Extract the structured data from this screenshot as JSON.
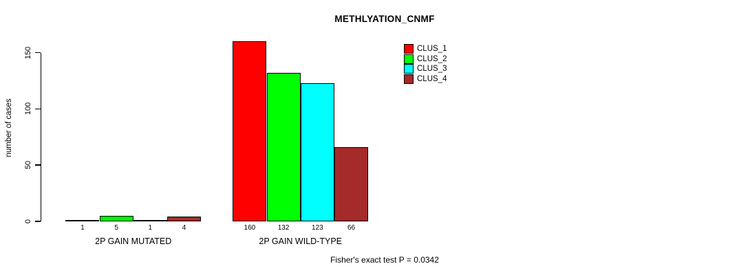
{
  "title": "METHLYATION_CNMF",
  "annotation": "Fisher's exact test P = 0.0342",
  "colors": {
    "background": "#FFFFFF",
    "axis": "#000000",
    "clus_1": "#FF0000",
    "clus_2": "#00FF00",
    "clus_3": "#00FFFF",
    "clus_4": "#A52A2A"
  },
  "chart_data": {
    "type": "bar",
    "title": "METHLYATION_CNMF",
    "xlabel": "",
    "ylabel": "number of cases",
    "ylim": [
      0,
      150
    ],
    "yticks": [
      0,
      50,
      100,
      150
    ],
    "grid": false,
    "legend_position": "top-right",
    "categories": [
      "2P GAIN MUTATED",
      "2P GAIN WILD-TYPE"
    ],
    "series": [
      {
        "name": "CLUS_1",
        "color": "#FF0000",
        "values": [
          1,
          160
        ]
      },
      {
        "name": "CLUS_2",
        "color": "#00FF00",
        "values": [
          5,
          132
        ]
      },
      {
        "name": "CLUS_3",
        "color": "#00FFFF",
        "values": [
          1,
          123
        ]
      },
      {
        "name": "CLUS_4",
        "color": "#A52A2A",
        "values": [
          4,
          66
        ]
      }
    ],
    "bar_value_labels_shown": true,
    "annotation": "Fisher's exact test P = 0.0342"
  }
}
